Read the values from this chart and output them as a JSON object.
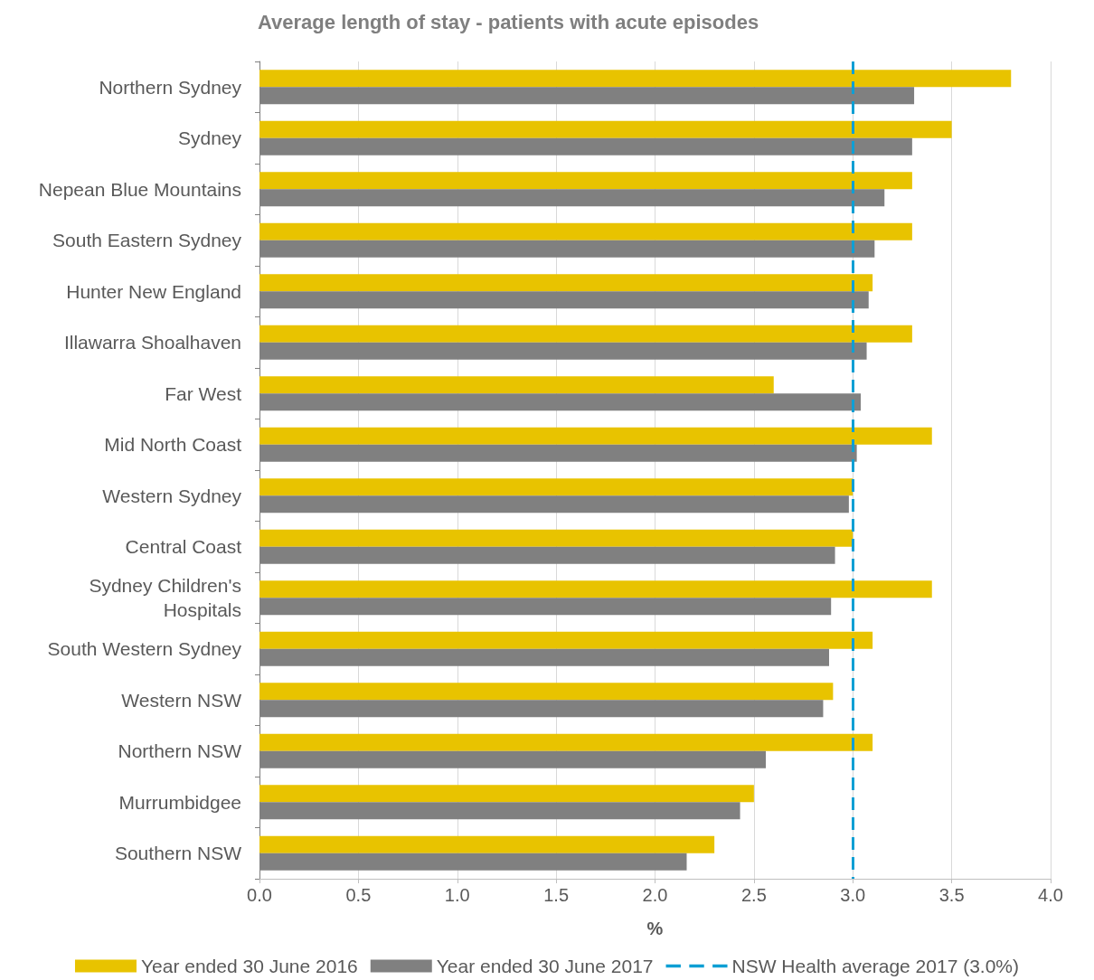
{
  "chart_data": {
    "type": "bar",
    "orientation": "horizontal",
    "title": "Average length of stay - patients with acute episodes",
    "xlabel": "%",
    "categories": [
      "Northern Sydney",
      "Sydney",
      "Nepean Blue Mountains",
      "South Eastern Sydney",
      "Hunter New England",
      "Illawarra Shoalhaven",
      "Far West",
      "Mid North Coast",
      "Western Sydney",
      "Central Coast",
      "Sydney Children's Hospitals",
      "South Western Sydney",
      "Western NSW",
      "Northern NSW",
      "Murrumbidgee",
      "Southern NSW"
    ],
    "series": [
      {
        "name": "Year ended 30 June 2016",
        "color": "#e8c300",
        "values": [
          3.8,
          3.5,
          3.3,
          3.3,
          3.1,
          3.3,
          2.6,
          3.4,
          3.0,
          3.0,
          3.4,
          3.1,
          2.9,
          3.1,
          2.5,
          2.3
        ]
      },
      {
        "name": "Year ended 30 June 2017",
        "color": "#808080",
        "values": [
          3.31,
          3.3,
          3.16,
          3.11,
          3.08,
          3.07,
          3.04,
          3.02,
          2.98,
          2.91,
          2.89,
          2.88,
          2.85,
          2.56,
          2.43,
          2.16
        ]
      }
    ],
    "xlim": [
      0,
      4
    ],
    "xticks": [
      {
        "value": 0,
        "label": "0.0"
      },
      {
        "value": 0.5,
        "label": "0.5"
      },
      {
        "value": 1,
        "label": "1.0"
      },
      {
        "value": 1.5,
        "label": "1.5"
      },
      {
        "value": 2,
        "label": "2.0"
      },
      {
        "value": 2.5,
        "label": "2.5"
      },
      {
        "value": 3,
        "label": "3.0"
      },
      {
        "value": 3.5,
        "label": "3.5"
      },
      {
        "value": 4,
        "label": "4.0"
      }
    ],
    "ref_lines": [
      {
        "axis": "x",
        "value": 3,
        "label": "NSW Health average 2017 (3.0%)",
        "color": "#0e9fd4",
        "line_style": "dashed"
      }
    ],
    "grid": "x",
    "legend": "bottom"
  }
}
